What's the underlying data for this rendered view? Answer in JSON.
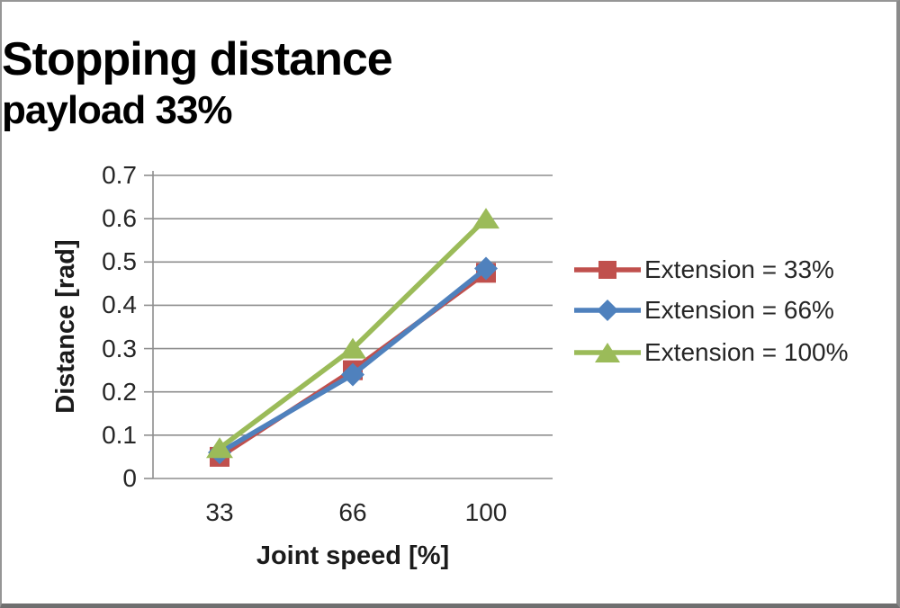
{
  "window": {
    "background": "#ffffff",
    "border_color": "#969696"
  },
  "chart_data": {
    "type": "line",
    "title": "Stopping distance",
    "subtitle": "payload 33%",
    "xlabel": "Joint speed [%]",
    "ylabel": "Distance [rad]",
    "categories": [
      "33",
      "66",
      "100"
    ],
    "x_values": [
      33,
      66,
      100
    ],
    "ylim": [
      0,
      0.7
    ],
    "ytick_step": 0.1,
    "yticks": [
      "0",
      "0.1",
      "0.2",
      "0.3",
      "0.4",
      "0.5",
      "0.6",
      "0.7"
    ],
    "grid": "horizontal gridlines on",
    "gridline_color": "#8e8e8e",
    "axis_color": "#8e8e8e",
    "text_color": "#262626",
    "legend_position": "right",
    "series": [
      {
        "name": "Extension = 33%",
        "color": "#C0504D",
        "marker": "square",
        "values": [
          0.05,
          0.25,
          0.475
        ]
      },
      {
        "name": "Extension = 66%",
        "color": "#4F81BD",
        "marker": "diamond",
        "values": [
          0.06,
          0.24,
          0.485
        ]
      },
      {
        "name": "Extension = 100%",
        "color": "#9BBB59",
        "marker": "triangle",
        "values": [
          0.07,
          0.3,
          0.6
        ]
      }
    ]
  }
}
